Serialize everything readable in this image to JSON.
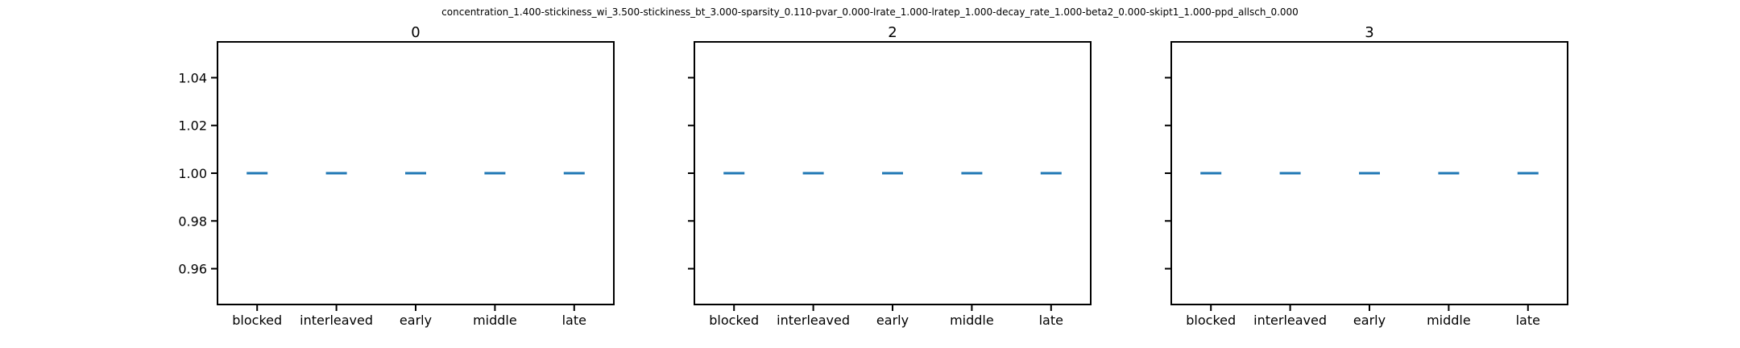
{
  "figure_title": "concentration_1.400-stickiness_wi_3.500-stickiness_bt_3.000-sparsity_0.110-pvar_0.000-lrate_1.000-lratep_1.000-decay_rate_1.000-beta2_0.000-skipt1_1.000-ppd_allsch_0.000",
  "colors": {
    "series": "#1f77b4",
    "axes": "#000000",
    "background": "#ffffff"
  },
  "chart_data": [
    {
      "type": "scatter",
      "marker": "horizontal-line",
      "title": "0",
      "categories": [
        "blocked",
        "interleaved",
        "early",
        "middle",
        "late"
      ],
      "values": [
        1.0,
        1.0,
        1.0,
        1.0,
        1.0
      ],
      "ylim": [
        0.945,
        1.055
      ],
      "yticks": [
        0.96,
        0.98,
        1.0,
        1.02,
        1.04
      ],
      "ytick_labels": [
        "0.96",
        "0.98",
        "1.00",
        "1.02",
        "1.04"
      ],
      "show_ytick_labels": true,
      "xlabel": "",
      "ylabel": "",
      "grid": false
    },
    {
      "type": "scatter",
      "marker": "horizontal-line",
      "title": "2",
      "categories": [
        "blocked",
        "interleaved",
        "early",
        "middle",
        "late"
      ],
      "values": [
        1.0,
        1.0,
        1.0,
        1.0,
        1.0
      ],
      "ylim": [
        0.945,
        1.055
      ],
      "yticks": [
        0.96,
        0.98,
        1.0,
        1.02,
        1.04
      ],
      "ytick_labels": [
        "0.96",
        "0.98",
        "1.00",
        "1.02",
        "1.04"
      ],
      "show_ytick_labels": false,
      "xlabel": "",
      "ylabel": "",
      "grid": false
    },
    {
      "type": "scatter",
      "marker": "horizontal-line",
      "title": "3",
      "categories": [
        "blocked",
        "interleaved",
        "early",
        "middle",
        "late"
      ],
      "values": [
        1.0,
        1.0,
        1.0,
        1.0,
        1.0
      ],
      "ylim": [
        0.945,
        1.055
      ],
      "yticks": [
        0.96,
        0.98,
        1.0,
        1.02,
        1.04
      ],
      "ytick_labels": [
        "0.96",
        "0.98",
        "1.00",
        "1.02",
        "1.04"
      ],
      "show_ytick_labels": false,
      "xlabel": "",
      "ylabel": "",
      "grid": false
    }
  ]
}
